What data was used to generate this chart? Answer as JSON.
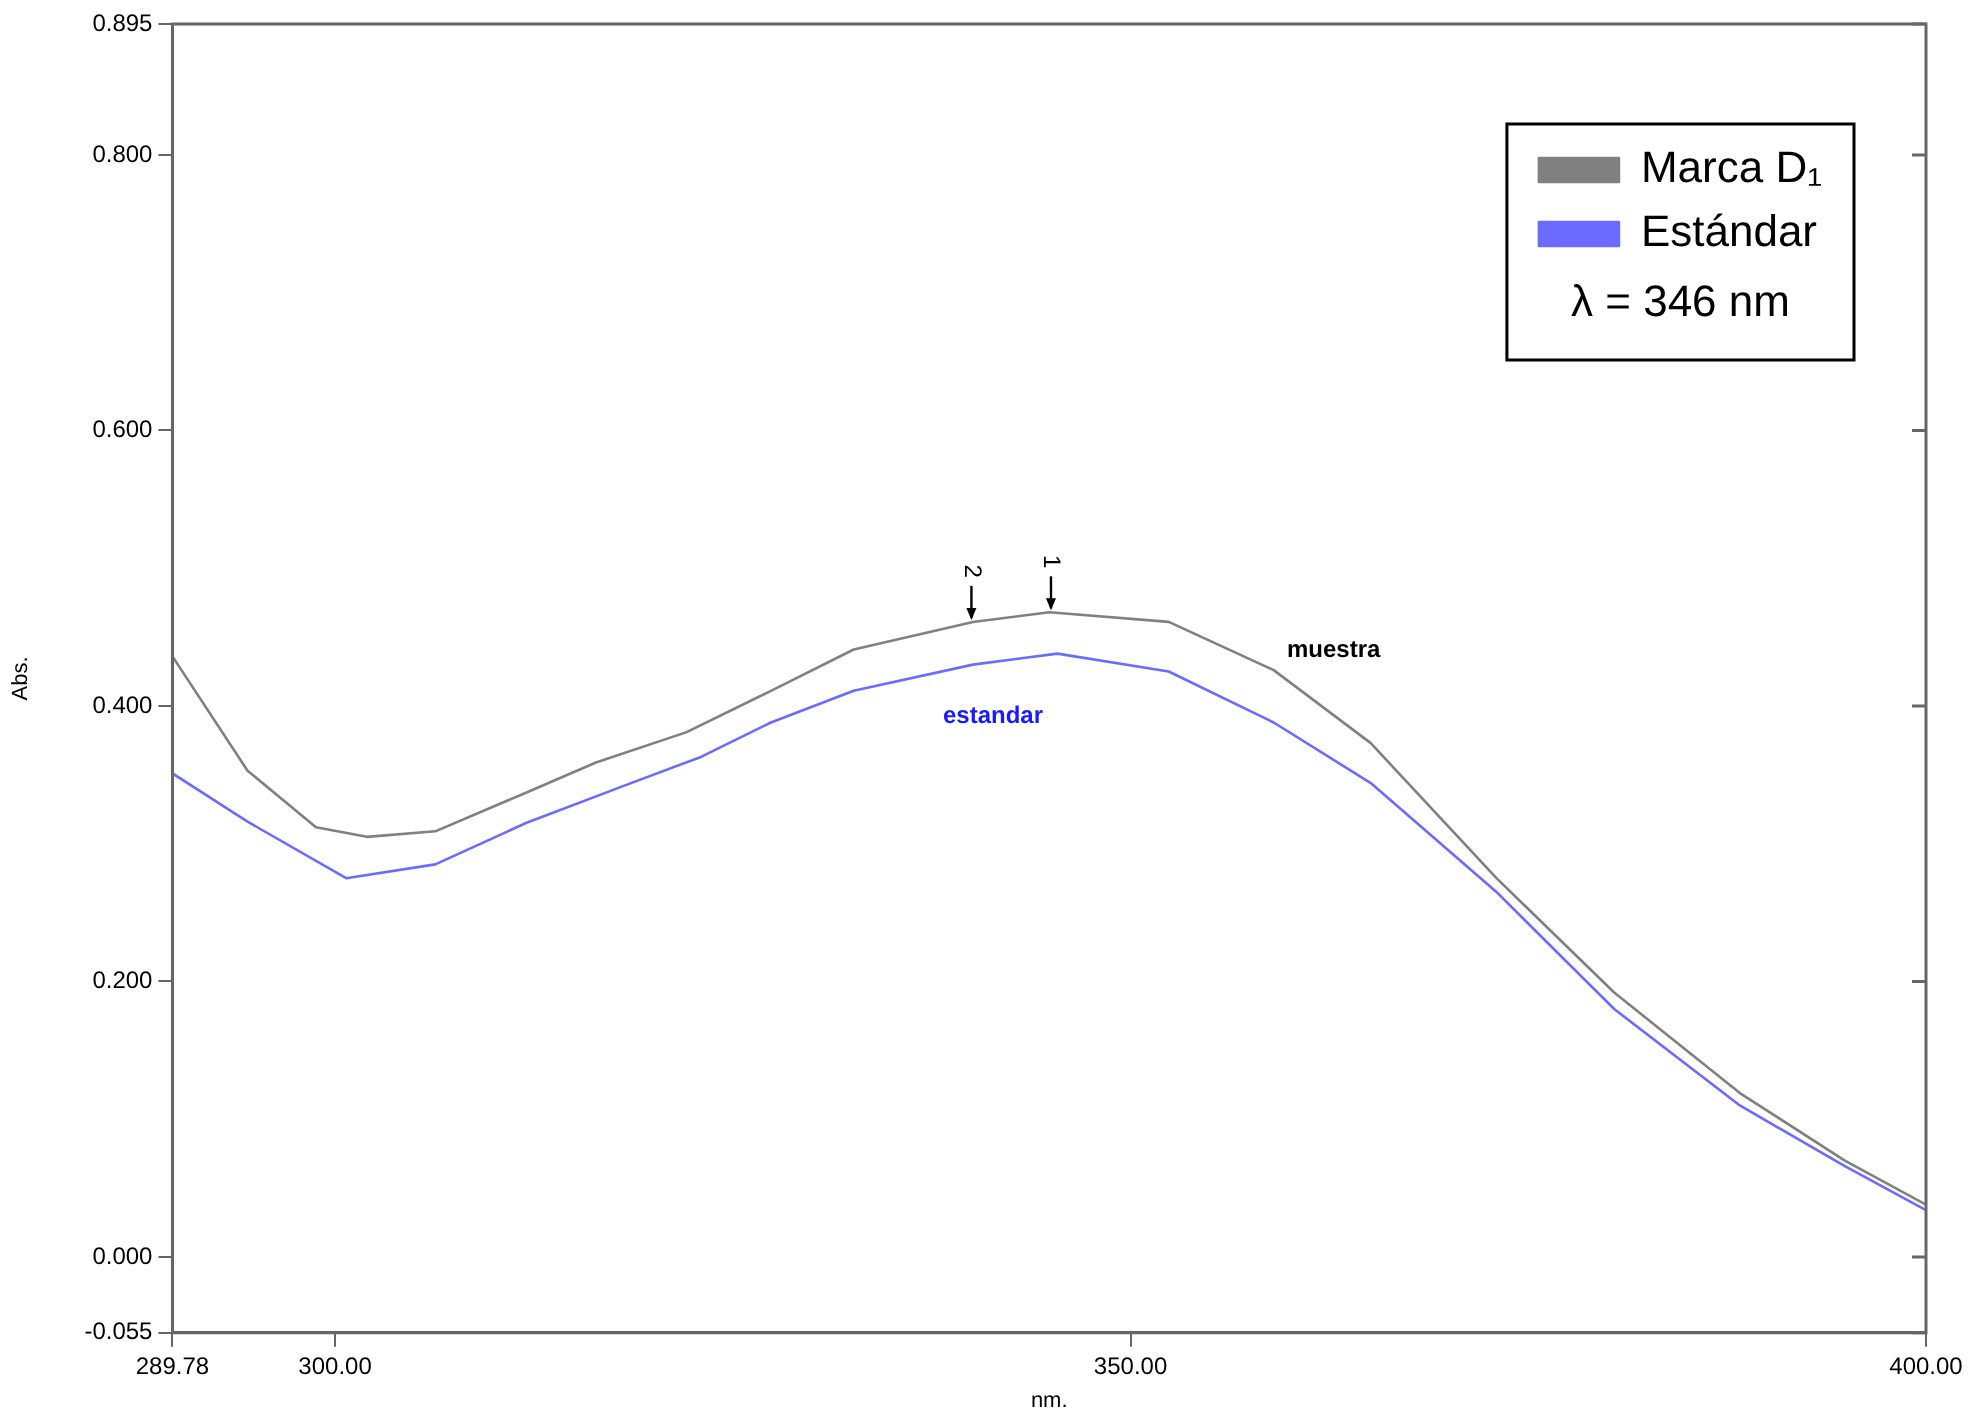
{
  "chart_data": {
    "type": "line",
    "xlabel": "nm.",
    "ylabel": "Abs.",
    "xlim": [
      289.78,
      400
    ],
    "ylim": [
      -0.055,
      0.895
    ],
    "xticks": [
      {
        "value": 289.78,
        "label": "289.78"
      },
      {
        "value": 300,
        "label": "300.00"
      },
      {
        "value": 350,
        "label": "350.00"
      },
      {
        "value": 400,
        "label": "400.00"
      }
    ],
    "yticks": [
      {
        "value": -0.055,
        "label": "-0.055"
      },
      {
        "value": 0,
        "label": "0.000"
      },
      {
        "value": 0.2,
        "label": "0.200"
      },
      {
        "value": 0.4,
        "label": "0.400"
      },
      {
        "value": 0.6,
        "label": "0.600"
      },
      {
        "value": 0.8,
        "label": "0.800"
      },
      {
        "value": 0.895,
        "label": "0.895"
      }
    ],
    "series": [
      {
        "name": "Marca D₁",
        "color": "#808080",
        "x": [
          289.78,
          294.5,
          298.8,
          302,
          306.3,
          312,
          316.4,
          322.1,
          327.4,
          332.6,
          340.1,
          344.9,
          352.4,
          359,
          365.1,
          373,
          380.4,
          388.3,
          394.9,
          400
        ],
        "values": [
          0.436,
          0.353,
          0.312,
          0.305,
          0.309,
          0.337,
          0.359,
          0.381,
          0.411,
          0.441,
          0.461,
          0.468,
          0.461,
          0.426,
          0.373,
          0.275,
          0.192,
          0.119,
          0.07,
          0.038
        ]
      },
      {
        "name": "Estándar",
        "color": "#6b6bff",
        "x": [
          289.78,
          294.5,
          300.7,
          306.3,
          312,
          318.6,
          323,
          327.4,
          332.6,
          340.1,
          345.4,
          352.4,
          359,
          365.1,
          373,
          380.4,
          388.3,
          394.9,
          400
        ],
        "values": [
          0.351,
          0.316,
          0.275,
          0.285,
          0.315,
          0.344,
          0.363,
          0.388,
          0.411,
          0.43,
          0.438,
          0.425,
          0.388,
          0.344,
          0.265,
          0.18,
          0.11,
          0.066,
          0.034
        ]
      }
    ],
    "annotations": [
      "muestra",
      "estandar",
      {
        "text": "1",
        "x": 345,
        "y": 0.468
      },
      {
        "text": "2",
        "x": 340,
        "y": 0.461
      },
      "λ = 346 nm"
    ],
    "legend": "top right",
    "grid": false,
    "marker": "none",
    "line_style": "solid"
  }
}
